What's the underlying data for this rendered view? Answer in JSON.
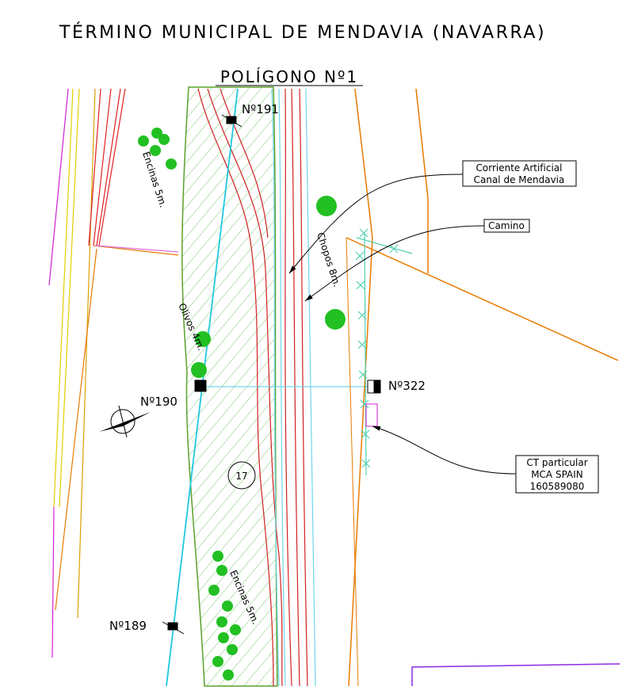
{
  "header": {
    "title": "TÉRMINO MUNICIPAL DE MENDAVIA (NAVARRA)",
    "subtitle": "POLÍGONO Nº1"
  },
  "points": [
    "Nº191",
    "Nº190",
    "Nº189",
    "Nº322"
  ],
  "vegetation": [
    "Encinas 5m.",
    "Chopos 8m.",
    "Olivos 4m.",
    "Encinas 5m."
  ],
  "parcel": "17",
  "callouts": [
    {
      "lines": [
        "Corriente Artificial",
        "Canal de Mendavia"
      ]
    },
    {
      "lines": [
        "Camino"
      ]
    },
    {
      "lines": [
        "CT particular",
        "MCA SPAIN",
        "160589080"
      ]
    }
  ]
}
